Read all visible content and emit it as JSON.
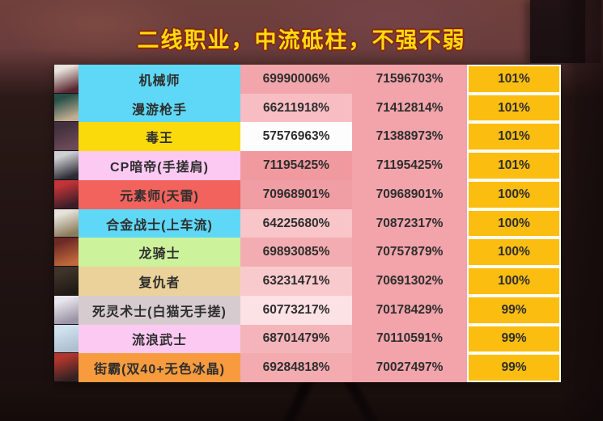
{
  "title": "二线职业，中流砥柱，不强不弱",
  "table": {
    "columns": [
      "avatar",
      "class-name",
      "damage-value-1",
      "damage-value-2",
      "percent"
    ],
    "value2_bg": "#f2a4aa",
    "percent_bg": "#fbbd10",
    "rows": [
      {
        "name": "机械师",
        "name_bg": "#5ed8f6",
        "value1": "69990006%",
        "value1_bg": "#f2a6ab",
        "value2": "71596703%",
        "percent": "101%",
        "avatar_icon": "character-portrait",
        "avatar_colors": [
          "#e8e3de",
          "#5a2730"
        ]
      },
      {
        "name": "漫游枪手",
        "name_bg": "#5ed8f6",
        "value1": "66211918%",
        "value1_bg": "#f7bdc2",
        "value2": "71412814%",
        "percent": "101%",
        "avatar_icon": "character-portrait",
        "avatar_colors": [
          "#265048",
          "#c4ae93"
        ]
      },
      {
        "name": "毒王",
        "name_bg": "#fbda0c",
        "value1": "57576963%",
        "value1_bg": "#fdfdfd",
        "value2": "71388973%",
        "percent": "101%",
        "avatar_icon": "character-portrait",
        "avatar_colors": [
          "#43303e",
          "#6b4a57"
        ]
      },
      {
        "name": "CP暗帝(手搓肩)",
        "name_bg": "#fcc9f3",
        "value1": "71195425%",
        "value1_bg": "#f0999f",
        "value2": "71195425%",
        "percent": "101%",
        "avatar_icon": "character-portrait",
        "avatar_colors": [
          "#cfd0d4",
          "#2c2c34"
        ]
      },
      {
        "name": "元素师(天雷)",
        "name_bg": "#f2635d",
        "value1": "70968901%",
        "value1_bg": "#f09da3",
        "value2": "70968901%",
        "percent": "100%",
        "avatar_icon": "character-portrait",
        "avatar_colors": [
          "#c23438",
          "#3a1e28"
        ]
      },
      {
        "name": "合金战士(上车流)",
        "name_bg": "#5ed8f6",
        "value1": "64225680%",
        "value1_bg": "#f8c5c9",
        "value2": "70872317%",
        "percent": "100%",
        "avatar_icon": "character-portrait",
        "avatar_colors": [
          "#e7e3da",
          "#8d7c5c"
        ]
      },
      {
        "name": "龙骑士",
        "name_bg": "#ccf29c",
        "value1": "69893085%",
        "value1_bg": "#f3acb1",
        "value2": "70757879%",
        "percent": "100%",
        "avatar_icon": "character-portrait",
        "avatar_colors": [
          "#6e2b26",
          "#c0683a"
        ]
      },
      {
        "name": "复仇者",
        "name_bg": "#ebd29a",
        "value1": "63231471%",
        "value1_bg": "#f9cacd",
        "value2": "70691302%",
        "percent": "100%",
        "avatar_icon": "character-portrait",
        "avatar_colors": [
          "#40342a",
          "#211a15"
        ]
      },
      {
        "name": "死灵术士(白猫无手搓)",
        "name_bg": "#d6cccf",
        "value1": "60773217%",
        "value1_bg": "#fce2e4",
        "value2": "70178429%",
        "percent": "99%",
        "avatar_icon": "character-portrait",
        "avatar_colors": [
          "#e9e6ee",
          "#9b93a6"
        ]
      },
      {
        "name": "流浪武士",
        "name_bg": "#fcc9f3",
        "value1": "68701479%",
        "value1_bg": "#f5b4b9",
        "value2": "70110591%",
        "percent": "99%",
        "avatar_icon": "character-portrait",
        "avatar_colors": [
          "#cfe2ee",
          "#aebfd0"
        ]
      },
      {
        "name": "街霸(双40+无色冰晶)",
        "name_bg": "#f79b3e",
        "value1": "69284818%",
        "value1_bg": "#f3abb0",
        "value2": "70027497%",
        "percent": "99%",
        "avatar_icon": "character-portrait",
        "avatar_colors": [
          "#b2362e",
          "#332222"
        ]
      }
    ]
  }
}
